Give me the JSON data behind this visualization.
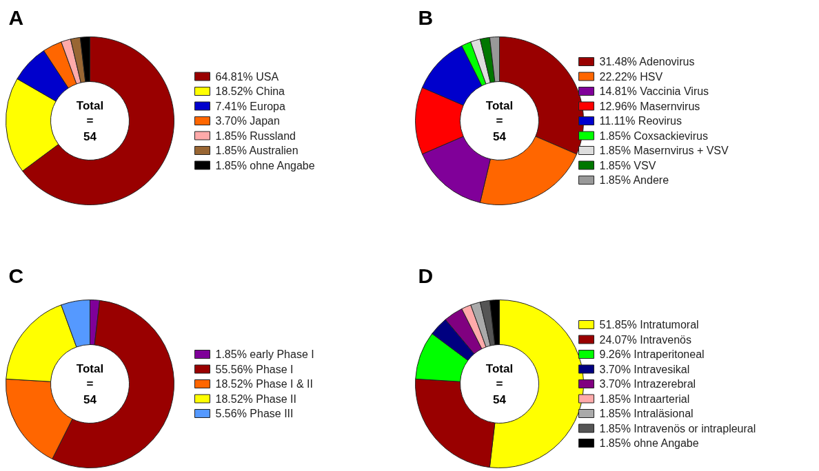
{
  "chart_data": [
    {
      "type": "donut",
      "title": "A",
      "categories": [
        "USA",
        "China",
        "Europa",
        "Japan",
        "Russland",
        "Australien",
        "ohne Angabe"
      ],
      "values": [
        64.81,
        18.52,
        7.41,
        3.7,
        1.85,
        1.85,
        1.85
      ],
      "value_labels": [
        "64.81%",
        "18.52%",
        "7.41%",
        "3.70%",
        "1.85%",
        "1.85%",
        "1.85%"
      ],
      "colors": [
        "#990000",
        "#ffff00",
        "#0000cc",
        "#ff6600",
        "#ffaaaa",
        "#996633",
        "#000000"
      ],
      "annotations": [
        "Total",
        "=",
        "54"
      ],
      "legend": "right"
    },
    {
      "type": "donut",
      "title": "B",
      "categories": [
        "Adenovirus",
        "HSV",
        "Vaccinia Virus",
        "Masernvirus",
        "Reovirus",
        "Coxsackievirus",
        "Masernvirus + VSV",
        "VSV",
        "Andere"
      ],
      "values": [
        31.48,
        22.22,
        14.81,
        12.96,
        11.11,
        1.85,
        1.85,
        1.85,
        1.85
      ],
      "value_labels": [
        "31.48%",
        "22.22%",
        "14.81%",
        "12.96%",
        "11.11%",
        "1.85%",
        "1.85%",
        "1.85%",
        "1.85%"
      ],
      "colors": [
        "#990000",
        "#ff6600",
        "#800099",
        "#ff0000",
        "#0000cc",
        "#00ff00",
        "#dddddd",
        "#007700",
        "#999999"
      ],
      "annotations": [
        "Total",
        "=",
        "54"
      ],
      "legend": "right"
    },
    {
      "type": "donut",
      "title": "C",
      "categories": [
        "early Phase I",
        "Phase I",
        "Phase I & II",
        "Phase II",
        "Phase III"
      ],
      "values": [
        1.85,
        55.56,
        18.52,
        18.52,
        5.56
      ],
      "value_labels": [
        "1.85%",
        "55.56%",
        "18.52%",
        "18.52%",
        "5.56%"
      ],
      "colors": [
        "#7f0099",
        "#990000",
        "#ff6600",
        "#ffff00",
        "#5599ff"
      ],
      "annotations": [
        "Total",
        "=",
        "54"
      ],
      "legend": "right"
    },
    {
      "type": "donut",
      "title": "D",
      "categories": [
        "Intratumoral",
        "Intravenös",
        "Intraperitoneal",
        "Intravesikal",
        "Intrazerebral",
        "Intraarterial",
        "Intraläsional",
        "Intravenös or intrapleural",
        "ohne Angabe"
      ],
      "values": [
        51.85,
        24.07,
        9.26,
        3.7,
        3.7,
        1.85,
        1.85,
        1.85,
        1.85
      ],
      "value_labels": [
        "51.85%",
        "24.07%",
        "9.26%",
        "3.70%",
        "3.70%",
        "1.85%",
        "1.85%",
        "1.85%",
        "1.85%"
      ],
      "colors": [
        "#ffff00",
        "#990000",
        "#00ff00",
        "#000080",
        "#800080",
        "#ffaaaa",
        "#aaaaaa",
        "#555555",
        "#000000"
      ],
      "annotations": [
        "Total",
        "=",
        "54"
      ],
      "legend": "right"
    }
  ]
}
